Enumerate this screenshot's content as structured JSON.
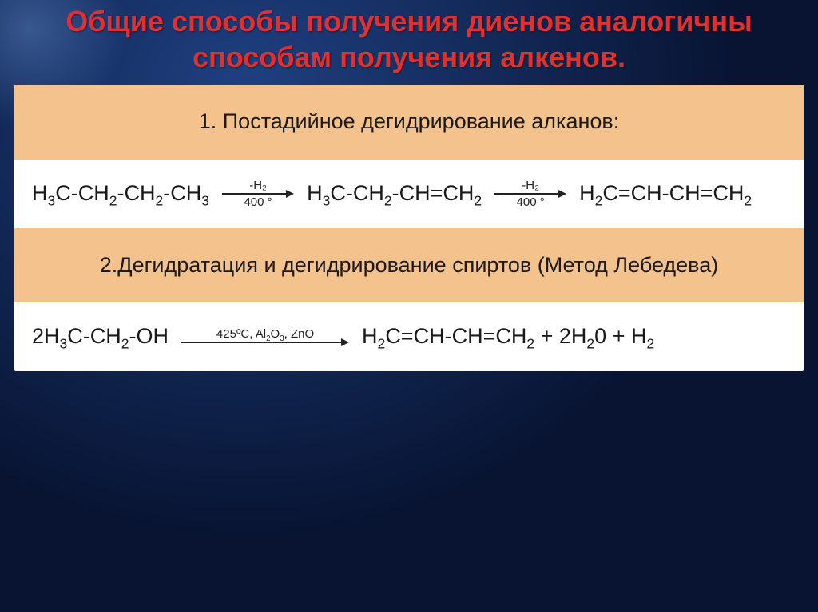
{
  "slide": {
    "title": "Общие способы получения диенов аналогичны способам получения алкенов.",
    "background_gradient": [
      "#0a1a3a",
      "#173a78"
    ],
    "title_color": "#e03030",
    "heading_bg": "#f4c28c",
    "body_bg": "#ffffff",
    "text_color": "#1a1a1a",
    "title_fontsize": 36,
    "body_fontsize": 27,
    "arrow_label_fontsize": 15,
    "sections": [
      {
        "type": "heading",
        "text": "1. Постадийное дегидрирование алканов:"
      },
      {
        "type": "reaction",
        "parts": {
          "reactant1": "H₃C-CH₂-CH₂-CH₃",
          "arrow1_top": "-H₂",
          "arrow1_bottom": "400 °",
          "intermediate": "H₃C-CH₂-CH=CH₂",
          "arrow2_top": "-H₂",
          "arrow2_bottom": "400 °",
          "product": "H₂C=CH-CH=CH₂"
        }
      },
      {
        "type": "heading",
        "text": "2.Дегидратация и дегидрирование спиртов (Метод Лебедева)"
      },
      {
        "type": "reaction2",
        "parts": {
          "reactant": "2H₃C-CH₂-OH",
          "arrow_top": "425°C, Al₂O₃, ZnO",
          "products": "H₂C=CH-CH=CH₂ + 2H₂0 + H₂"
        }
      }
    ]
  }
}
